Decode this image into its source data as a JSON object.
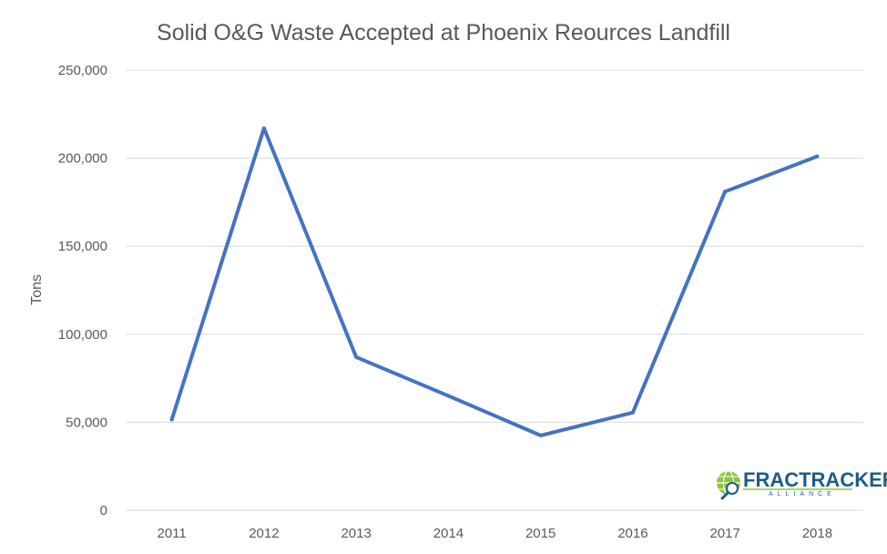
{
  "chart_data": {
    "type": "line",
    "title": "Solid O&G Waste Accepted at Phoenix Reources Landfill",
    "xlabel": "",
    "ylabel": "Tons",
    "categories": [
      "2011",
      "2012",
      "2013",
      "2014",
      "2015",
      "2016",
      "2017",
      "2018"
    ],
    "series": [
      {
        "name": "Solid O&G Waste",
        "values": [
          51500,
          217000,
          87000,
          65000,
          42500,
          55500,
          181000,
          201000
        ]
      }
    ],
    "ylim": [
      0,
      250000
    ],
    "yticks": [
      0,
      50000,
      100000,
      150000,
      200000,
      250000
    ],
    "ytick_labels": [
      "0",
      "50,000",
      "100,000",
      "150,000",
      "200,000",
      "250,000"
    ],
    "grid": true,
    "legend": "none",
    "colors": {
      "series": "#4472c4",
      "grid": "#d9d9d9",
      "text": "#595959",
      "logo": "#1b5c8a",
      "logo_accent": "#8cc63f"
    }
  },
  "logo": {
    "name": "FRACTRACKER",
    "tagline": "ALLIANCE"
  }
}
